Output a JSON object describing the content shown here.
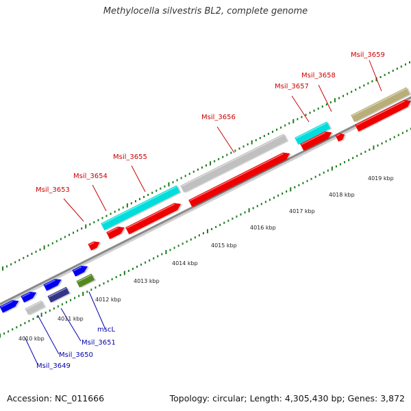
{
  "title": "Methylocella silvestris BL2, complete genome",
  "footer": {
    "accession": "Accession: NC_011666",
    "summary": "Topology: circular; Length: 4,305,430 bp; Genes: 3,872"
  },
  "colors": {
    "label_upper": "#cc0000",
    "label_lower": "#0000aa",
    "backbone": "#8a8a8a",
    "tick": "#1a7a1a"
  },
  "scale_labels": [
    "4010 kbp",
    "4011 kbp",
    "4012 kbp",
    "4013 kbp",
    "4014 kbp",
    "4015 kbp",
    "4016 kbp",
    "4017 kbp",
    "4018 kbp",
    "4019 kbp"
  ],
  "features": [
    {
      "id": "f1",
      "color": "#0000ee"
    },
    {
      "id": "f2",
      "color": "#0000ee"
    },
    {
      "id": "f3",
      "color": "#c0c0c0"
    },
    {
      "id": "f4",
      "color": "#0000ee"
    },
    {
      "id": "f5",
      "color": "#333388"
    },
    {
      "id": "f6",
      "color": "#0000ee"
    },
    {
      "id": "f7",
      "color": "#558822"
    },
    {
      "id": "f8",
      "color": "#ee0000"
    },
    {
      "id": "f9",
      "color": "#ee0000"
    },
    {
      "id": "f10",
      "color": "#00dddd"
    },
    {
      "id": "f11",
      "color": "#ee0000"
    },
    {
      "id": "f12",
      "color": "#c0c0c0"
    },
    {
      "id": "f13",
      "color": "#ee0000"
    },
    {
      "id": "f14",
      "color": "#00dddd"
    },
    {
      "id": "f15",
      "color": "#ee0000"
    },
    {
      "id": "f16",
      "color": "#ee0000"
    },
    {
      "id": "f17",
      "color": "#b8ae78"
    },
    {
      "id": "f18",
      "color": "#ee0000"
    }
  ],
  "gene_labels": [
    {
      "text": "Msil_3653",
      "group": "upper"
    },
    {
      "text": "Msil_3654",
      "group": "upper"
    },
    {
      "text": "Msil_3655",
      "group": "upper"
    },
    {
      "text": "Msil_3656",
      "group": "upper"
    },
    {
      "text": "Msil_3657",
      "group": "upper"
    },
    {
      "text": "Msil_3658",
      "group": "upper"
    },
    {
      "text": "Msil_3659",
      "group": "upper"
    },
    {
      "text": "mscL",
      "group": "lower"
    },
    {
      "text": "Msil_3651",
      "group": "lower"
    },
    {
      "text": "Msil_3650",
      "group": "lower"
    },
    {
      "text": "Msil_3649",
      "group": "lower"
    }
  ]
}
